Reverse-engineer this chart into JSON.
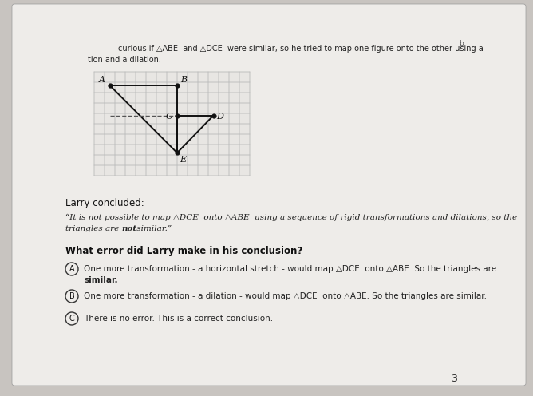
{
  "bg_color": "#c8c4c0",
  "page_bg": "#eeece9",
  "top_text_line1": "curious if △ABE  and △DCE  were similar, so he tried to map one figure onto the other using a",
  "top_text_line2": "tion and a dilation.",
  "larry_label": "Larry concluded:",
  "larry_quote_line1": "“It is not possible to map △DCE  onto △ABE  using a sequence of rigid transformations and dilations, so the",
  "larry_quote_line2": "triangles are ",
  "larry_quote_bold": "not",
  "larry_quote_end": " similar.”",
  "question": "What error did Larry make in his conclusion?",
  "optA_prefix": "One more transformation - a horizontal stretch - would map △DCE  onto △ABE. So the triangles are",
  "optA_end": "similar.",
  "optB": "One more transformation - a dilation - would map △DCE  onto △ABE. So the triangles are similar.",
  "optC": "There is no error. This is a correct conclusion.",
  "page_number": "3",
  "dot_b": "b",
  "grid_color": "#bbbbbb",
  "triangle_color": "#111111",
  "dashed_color": "#555555"
}
